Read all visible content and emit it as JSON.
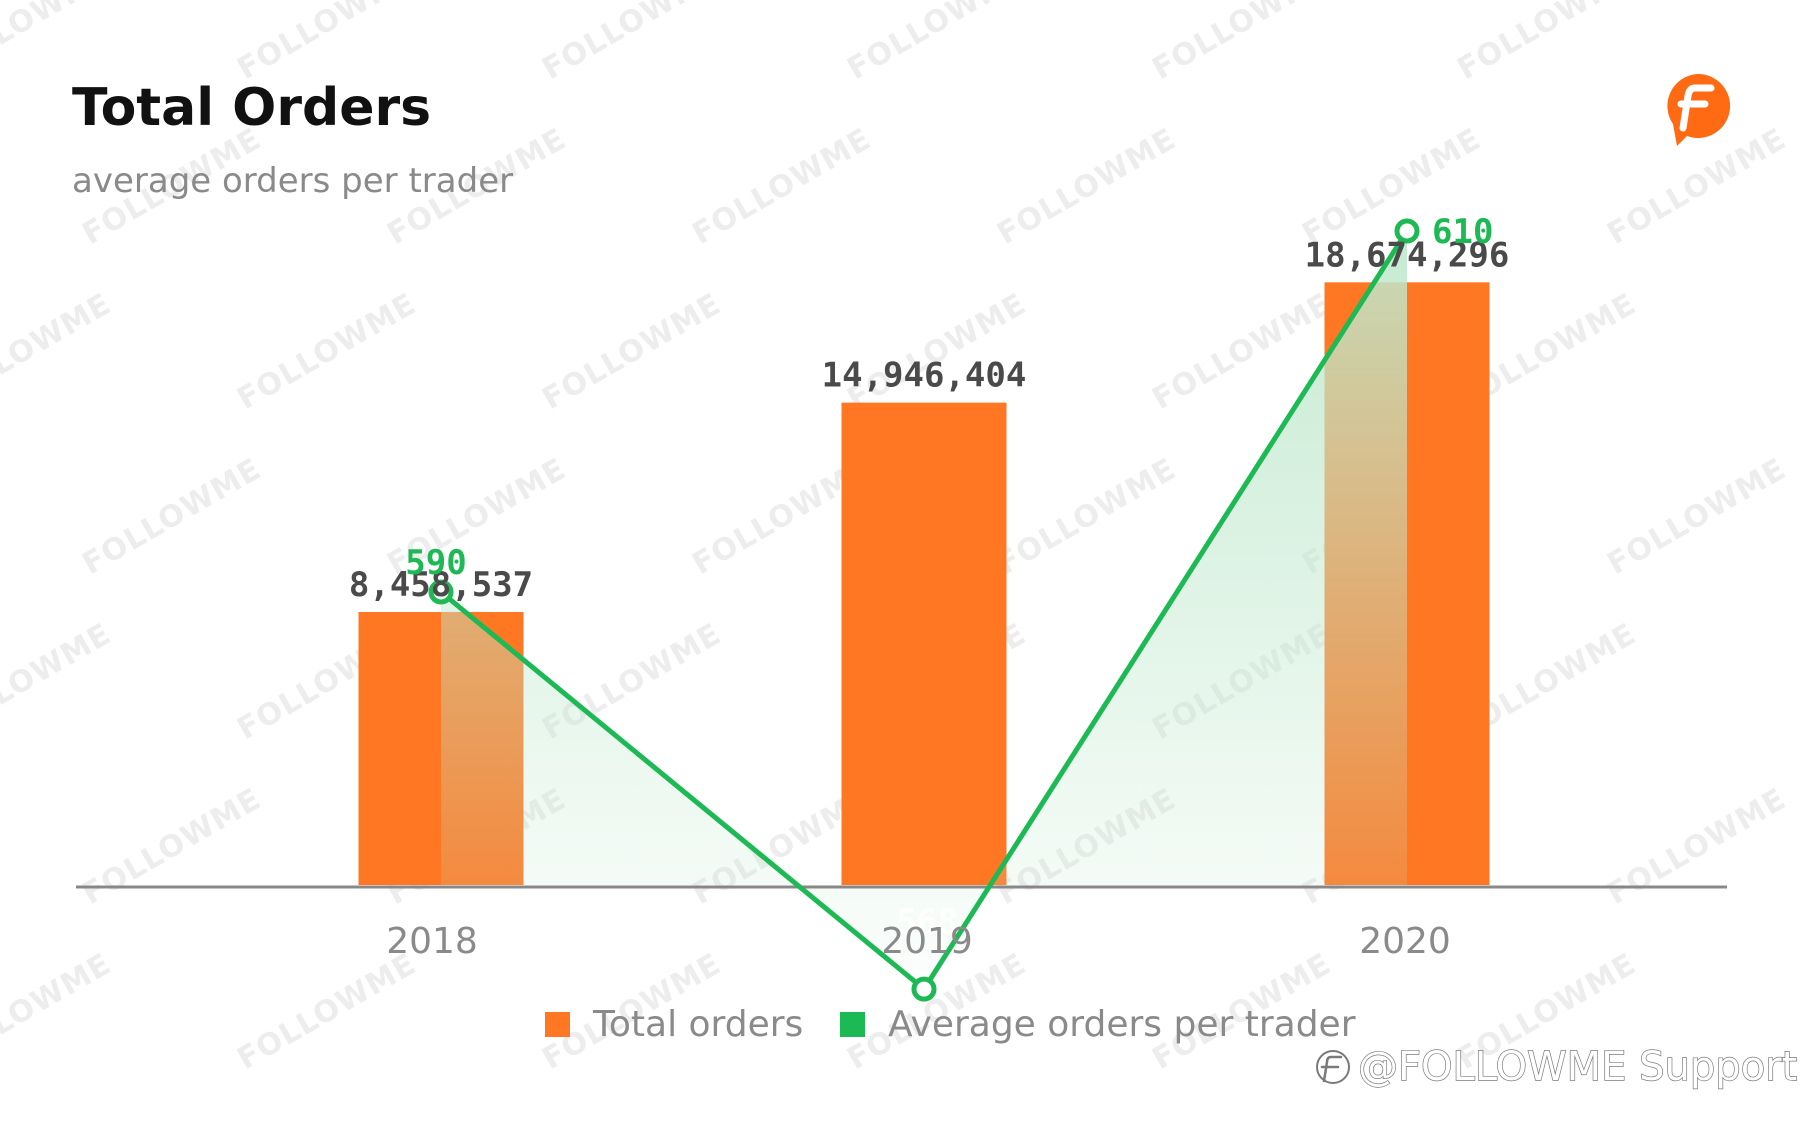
{
  "header": {
    "title": "Total Orders",
    "subtitle": "average orders per trader"
  },
  "brand": {
    "logo_icon": "followme-f-logo-icon",
    "watermark_text": "FOLLOWME",
    "credit_text": "@FOLLOWME Support",
    "credit_icon": "weibo-style-logo-icon"
  },
  "colors": {
    "bar": "#ff7722",
    "bar_overlap": "#d9812d",
    "line": "#1db954",
    "area_top": "#bfe8cc",
    "axis": "#888888",
    "logo": "#ff6a13"
  },
  "chart_data": {
    "type": "bar",
    "categories": [
      "2018",
      "2019",
      "2020"
    ],
    "series": [
      {
        "name": "Total orders",
        "type": "bar",
        "values": [
          8458537,
          14946404,
          18674296
        ],
        "labels": [
          "8,458,537",
          "14,946,404",
          "18,674,296"
        ]
      },
      {
        "name": "Average orders per trader",
        "type": "line",
        "values": [
          590,
          568,
          610
        ],
        "labels": [
          "590",
          "568",
          "610"
        ],
        "area_fill": true
      }
    ],
    "legend": {
      "position": "bottom-center",
      "items": [
        "Total orders",
        "Average orders per trader"
      ]
    },
    "grid": false
  }
}
